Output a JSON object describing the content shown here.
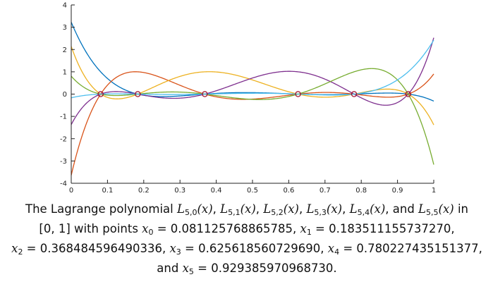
{
  "chart_data": {
    "type": "line",
    "xlim": [
      0,
      1
    ],
    "ylim": [
      -4,
      4
    ],
    "x_ticks": [
      0,
      0.1,
      0.2,
      0.3,
      0.4,
      0.5,
      0.6,
      0.7,
      0.8,
      0.9,
      1
    ],
    "x_tick_labels": [
      "0",
      "0.1",
      "0.2",
      "0.3",
      "0.4",
      "0.5",
      "0.6",
      "0.7",
      "0.8",
      "0.9",
      "1"
    ],
    "y_ticks": [
      -4,
      -3,
      -2,
      -1,
      0,
      1,
      2,
      3,
      4
    ],
    "y_tick_labels": [
      "-4",
      "-3",
      "-2",
      "-1",
      "0",
      "1",
      "2",
      "3",
      "4"
    ],
    "grid": false,
    "nodes": [
      0.081125768865785,
      0.18351115573727,
      0.368484596490336,
      0.62561856072969,
      0.780227435151377,
      0.92938597096873
    ],
    "series": [
      {
        "color": "#0072bd"
      },
      {
        "color": "#d95319"
      },
      {
        "color": "#edb120"
      },
      {
        "color": "#7e2f8e"
      },
      {
        "color": "#77ac30"
      },
      {
        "color": "#4dbeee"
      }
    ],
    "marker_color": "#a2142f"
  },
  "caption": {
    "line1_pre": "The Lagrange polynomial ",
    "L0": "L",
    "L0_sub": "5,0",
    "L0_arg": "(x)",
    "sep1": ", ",
    "L1": "L",
    "L1_sub": "5,1",
    "L1_arg": "(x)",
    "sep2": ", ",
    "L2": "L",
    "L2_sub": "5,2",
    "L2_arg": "(x)",
    "sep3": ", ",
    "L3": "L",
    "L3_sub": "5,3",
    "L3_arg": "(x)",
    "sep4": ", ",
    "L4": "L",
    "L4_sub": "5,4",
    "L4_arg": "(x)",
    "sep5": ", and ",
    "L5": "L",
    "L5_sub": "5,5",
    "L5_arg": "(x)",
    "line1_post": " in",
    "line2_pre": "[0, 1] with points ",
    "x0": "x",
    "x0_sub": "0",
    "x0_val": " = 0.081125768865785, ",
    "x1": "x",
    "x1_sub": "1",
    "x1_val": " = 0.183511155737270,",
    "x2": "x",
    "x2_sub": "2",
    "x2_val": " = 0.368484596490336, ",
    "x3": "x",
    "x3_sub": "3",
    "x3_val": " = 0.625618560729690, ",
    "x4": "x",
    "x4_sub": "4",
    "x4_val": " = 0.780227435151377,",
    "line4_pre": "and ",
    "x5": "x",
    "x5_sub": "5",
    "x5_val": " = 0.929385970968730."
  }
}
